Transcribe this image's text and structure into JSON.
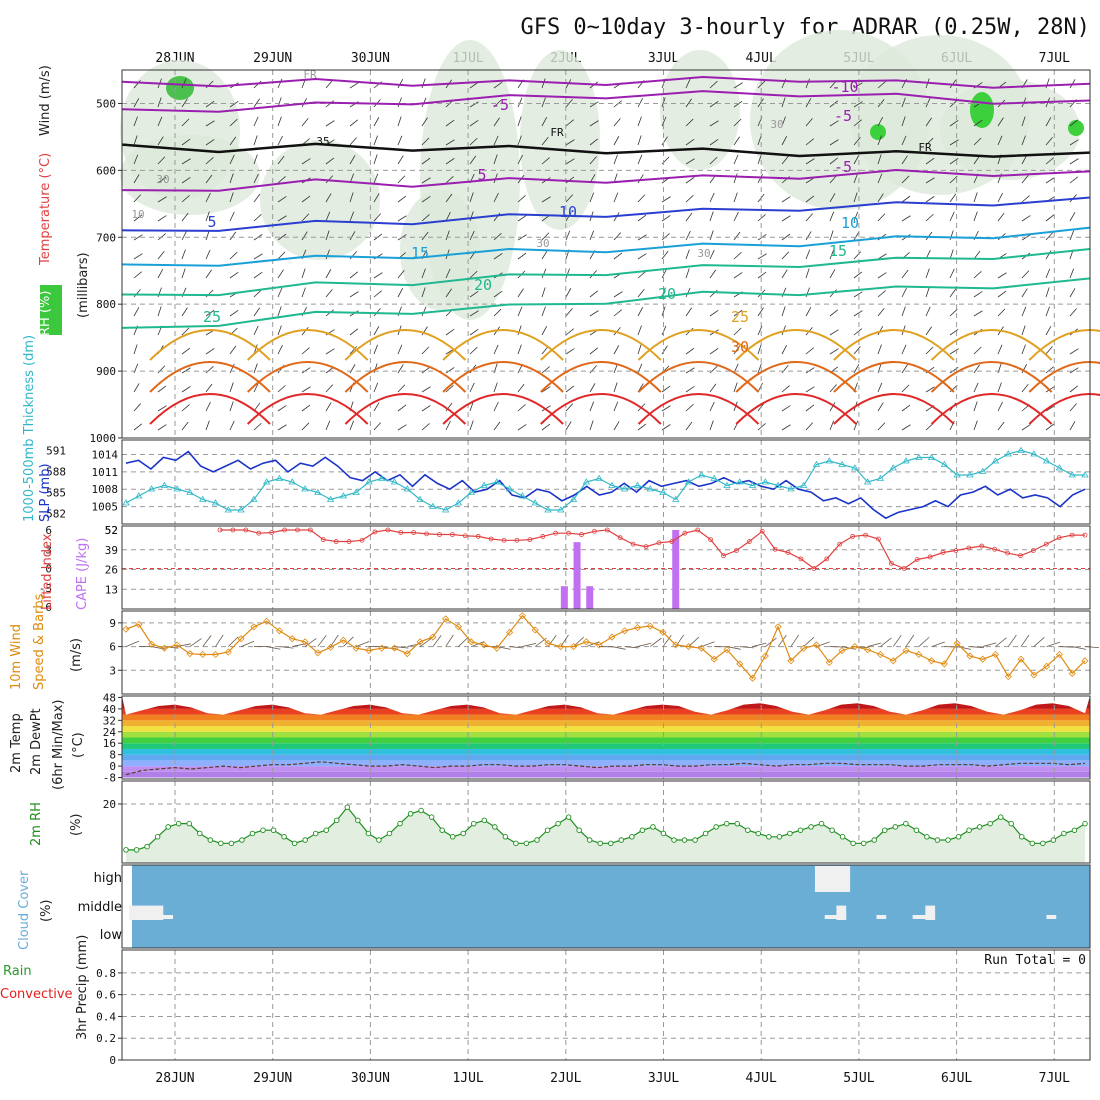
{
  "title": "GFS 0~10day 3-hourly for ADRAR (0.25W, 28N)",
  "dates": [
    "28JUN",
    "29JUN",
    "30JUN",
    "1JUL",
    "2JUL",
    "3JUL",
    "4JUL",
    "5JUL",
    "6JUL",
    "7JUL"
  ],
  "colors": {
    "grid": "#9a9a9a",
    "temp_purple": "#9a1fb0",
    "temp_blue": "#2a3fd0",
    "temp_lightblue": "#1aa0d8",
    "temp_teal": "#20b890",
    "temp_orange": "#e0a020",
    "temp_dark_orange": "#e06818",
    "temp_red": "#e02828",
    "rh_shade": "#dce8da",
    "slp": "#1a33c8",
    "thickness": "#30b8c8",
    "lifted": "#e04040",
    "cape": "#c070f0",
    "wind": "#e08a10",
    "rh2m": "#1f8f1f",
    "cloud_bg": "#6aaed6",
    "precip_green": "#2a9a2a",
    "precip_red": "#e02020"
  },
  "panel_labels": {
    "wind": "Wind (m/s)",
    "temperature": "Temperature (°C)",
    "rh": "RH (%)",
    "millibars": "(millibars)",
    "slp": "SLP (mb)",
    "thickness": "1000-500mb Thickness (dm)",
    "cape": "CAPE (J/kg)",
    "lifted_index": "Lifted Index",
    "wind10m_a": "10m Wind",
    "wind10m_b": "Speed & Barbs",
    "wind10m_units": "(m/s)",
    "temp2m_a": "2m Temp",
    "temp2m_b": "2m DewPt",
    "temp2m_c": "(6hr Min/Max)",
    "temp2m_units": "(°C)",
    "rh2m": "2m RH",
    "rh2m_units": "(%)",
    "cloud": "Cloud Cover",
    "cloud_units": "(%)",
    "precip_a": "Total / Rain",
    "precip_b": "Convective",
    "precip_c": "3hr Precip (mm)",
    "run_total": "Run Total = 0"
  },
  "chart_data": [
    {
      "type": "line",
      "panel": "upper-air cross section",
      "ylabel": "(millibars)",
      "y_ticks": [
        500,
        600,
        700,
        800,
        900,
        1000
      ],
      "ylim": [
        1000,
        450
      ],
      "contour_labels": [
        "-10",
        "-5",
        "-5",
        "-5",
        "5",
        "5",
        "10",
        "10",
        "15",
        "15",
        "20",
        "20",
        "25",
        "25",
        "30",
        "35",
        "FR",
        "FR",
        "FR",
        "10",
        "30",
        "30",
        "30",
        "30"
      ],
      "isotherms_mb": [
        {
          "name": "-10",
          "values": [
            472,
            470,
            468,
            469,
            470,
            468,
            465,
            463,
            470,
            472,
            475
          ]
        },
        {
          "name": "-5",
          "values": [
            513,
            508,
            503,
            497,
            492,
            488,
            486,
            485,
            490,
            496,
            500
          ]
        },
        {
          "name": "FR",
          "values": [
            566,
            568,
            565,
            566,
            568,
            570,
            572,
            574,
            576,
            575,
            578
          ]
        },
        {
          "name": "5",
          "values": [
            634,
            626,
            618,
            620,
            616,
            614,
            612,
            608,
            604,
            604,
            606
          ]
        },
        {
          "name": "10",
          "values": [
            694,
            686,
            680,
            676,
            670,
            665,
            662,
            656,
            652,
            648,
            645
          ]
        },
        {
          "name": "15",
          "values": [
            745,
            738,
            732,
            727,
            722,
            718,
            714,
            709,
            703,
            697,
            690
          ]
        },
        {
          "name": "20",
          "values": [
            790,
            782,
            772,
            767,
            760,
            752,
            746,
            740,
            735,
            728,
            722
          ]
        },
        {
          "name": "25",
          "values": [
            840,
            828,
            816,
            810,
            805,
            795,
            786,
            782,
            778,
            772,
            766
          ]
        }
      ]
    },
    {
      "type": "line",
      "panel": "SLP and thickness",
      "series": [
        {
          "name": "SLP (mb)",
          "values": [
            1012.5,
            1013.0,
            1011.5,
            1013.5,
            1013.0,
            1014.5,
            1012.0,
            1011.0,
            1012.0,
            1013.0,
            1011.5,
            1012.5,
            1013.0,
            1011.0,
            1012.5,
            1012.0,
            1013.5,
            1012.0,
            1010.0,
            1009.5,
            1011.0,
            1009.5,
            1010.5,
            1008.5,
            1010.5,
            1009.0,
            1008.0,
            1009.5,
            1007.5,
            1008.0,
            1009.5,
            1007.0,
            1006.5,
            1008.0,
            1007.5,
            1006.0,
            1007.0,
            1008.5,
            1007.0,
            1007.5,
            1009.0,
            1007.5,
            1009.5,
            1008.5,
            1009.0,
            1009.5,
            1008.5,
            1009.0,
            1010.0,
            1009.0,
            1009.5,
            1008.5,
            1008.0,
            1009.5,
            1008.0,
            1007.5,
            1006.0,
            1006.5,
            1005.5,
            1006.5,
            1004.5,
            1003.0,
            1004.0,
            1004.5,
            1005.0,
            1006.0,
            1005.0,
            1007.0,
            1007.5,
            1008.5,
            1007.0,
            1008.0,
            1006.5,
            1007.0,
            1006.5,
            1005.0,
            1007.0,
            1008.0
          ]
        },
        {
          "name": "1000-500mb Thickness (dm)",
          "values": [
            583.5,
            584.5,
            585.5,
            586.0,
            585.5,
            585.0,
            584.0,
            583.5,
            582.5,
            582.5,
            584.0,
            586.5,
            587.0,
            586.5,
            585.5,
            585.0,
            584.0,
            584.5,
            585.0,
            586.5,
            587.0,
            586.5,
            585.5,
            584.0,
            583.0,
            582.5,
            583.5,
            585.0,
            586.0,
            586.5,
            585.5,
            584.5,
            583.5,
            582.5,
            582.5,
            584.0,
            586.5,
            587.0,
            586.0,
            585.5,
            586.0,
            585.5,
            585.0,
            584.0,
            586.5,
            587.5,
            587.0,
            586.0,
            586.5,
            586.0,
            586.5,
            586.0,
            585.5,
            586.0,
            589.0,
            589.5,
            589.0,
            588.5,
            586.5,
            587.0,
            588.5,
            589.5,
            590.0,
            590.0,
            589.0,
            587.5,
            587.5,
            588.0,
            589.5,
            590.5,
            591.0,
            590.5,
            589.5,
            588.5,
            587.5,
            587.5
          ]
        }
      ],
      "y_ticks_left_thickness": [
        582,
        585,
        588,
        591
      ],
      "y_ticks_right_slp": [
        1005,
        1008,
        1011,
        1014
      ]
    },
    {
      "type": "bar",
      "panel": "CAPE and Lifted Index",
      "cape_bars": [
        {
          "x": 4.48,
          "value": 15
        },
        {
          "x": 4.61,
          "value": 44
        },
        {
          "x": 4.74,
          "value": 15
        },
        {
          "x": 5.62,
          "value": 52
        }
      ],
      "lifted_index": [
        6.0,
        6.0,
        6.0,
        5.5,
        5.6,
        6.0,
        6.0,
        6.0,
        4.5,
        4.2,
        4.2,
        4.4,
        5.7,
        6.0,
        5.6,
        5.6,
        5.4,
        5.3,
        5.3,
        5.1,
        5.0,
        4.6,
        4.4,
        4.4,
        4.5,
        5.0,
        5.5,
        5.5,
        5.3,
        5.8,
        6.0,
        4.8,
        3.8,
        3.4,
        4.0,
        4.2,
        5.5,
        6.0,
        4.5,
        2.0,
        2.8,
        4.2,
        5.8,
        3.0,
        2.5,
        1.5,
        0.0,
        1.5,
        3.8,
        5.0,
        5.2,
        4.6,
        0.8,
        0.0,
        1.4,
        1.8,
        2.5,
        2.8,
        3.2,
        3.5,
        3.0,
        2.4,
        2.0,
        2.8,
        3.8,
        4.8,
        5.2,
        5.2
      ],
      "lifted_index_ticks": [
        6,
        3,
        0,
        -3,
        -6
      ],
      "cape_ticks": [
        13,
        26,
        39,
        52
      ]
    },
    {
      "type": "line",
      "panel": "10m wind",
      "series": [
        {
          "name": "Speed",
          "values": [
            8.2,
            8.8,
            6.3,
            5.8,
            6.2,
            5.1,
            5.0,
            5.0,
            5.3,
            7.0,
            8.5,
            9.2,
            8.0,
            7.0,
            6.6,
            5.2,
            5.9,
            6.8,
            5.8,
            5.5,
            5.8,
            5.8,
            5.1,
            6.6,
            7.2,
            9.5,
            8.5,
            6.6,
            6.2,
            5.8,
            7.8,
            9.9,
            8.1,
            6.4,
            6.0,
            6.0,
            6.6,
            6.2,
            7.2,
            8.0,
            8.4,
            8.6,
            7.8,
            6.2,
            6.0,
            5.8,
            4.4,
            5.6,
            3.8,
            2.0,
            4.8,
            8.5,
            4.2,
            5.8,
            6.2,
            4.0,
            5.5,
            6.0,
            5.6,
            5.0,
            4.2,
            5.5,
            5.0,
            4.2,
            3.8,
            6.4,
            4.8,
            4.4,
            5.0,
            2.2,
            4.4,
            2.4,
            3.5,
            5.0,
            2.6,
            4.2
          ]
        }
      ],
      "y_ticks": [
        3,
        6,
        9
      ]
    },
    {
      "type": "area",
      "panel": "2m temperature",
      "y_ticks": [
        -8,
        0,
        8,
        16,
        24,
        32,
        40,
        48
      ],
      "band_boundaries": [
        -8,
        -4,
        0,
        4,
        8,
        12,
        16,
        20,
        24,
        28,
        32,
        36,
        40,
        44
      ],
      "series": [
        {
          "name": "2m Temp max",
          "values": [
            36,
            39,
            42,
            43,
            41,
            37,
            36,
            39,
            42,
            43,
            41,
            37,
            36,
            39,
            42,
            43,
            41,
            37,
            36,
            39,
            42,
            43,
            41,
            37,
            36,
            39,
            42,
            43,
            41,
            37,
            36,
            39,
            42,
            43,
            42,
            38,
            36,
            39,
            43,
            44,
            42,
            38,
            36,
            39,
            43,
            44,
            42,
            38,
            36,
            39,
            43,
            44,
            42,
            38,
            36,
            39,
            43,
            44,
            42,
            37
          ]
        },
        {
          "name": "2m DewPt",
          "values": [
            -6,
            -3,
            -2,
            -1,
            -2,
            -1,
            0,
            -1,
            0,
            1,
            1,
            2,
            3,
            2,
            1,
            0,
            0,
            1,
            0,
            -1,
            0,
            0,
            1,
            1,
            0,
            0,
            1,
            1,
            0,
            -1,
            0,
            0,
            1,
            1,
            0,
            0,
            1,
            1,
            2,
            1,
            0,
            1,
            1,
            2,
            2,
            1,
            1,
            1,
            0,
            0,
            1,
            1,
            1,
            0,
            1,
            2,
            2,
            2,
            1,
            2
          ]
        }
      ]
    },
    {
      "type": "area",
      "panel": "2m RH",
      "y_ticks": [
        20
      ],
      "series": [
        {
          "name": "2m RH (%)",
          "values": [
            6,
            6,
            7,
            10,
            13,
            14,
            14,
            11,
            9,
            8,
            8,
            9,
            11,
            12,
            12,
            10,
            8,
            9,
            11,
            12,
            15,
            19,
            15,
            11,
            9,
            11,
            14,
            17,
            18,
            16,
            12,
            10,
            11,
            14,
            15,
            13,
            10,
            8,
            8,
            9,
            12,
            14,
            16,
            12,
            9,
            8,
            8,
            9,
            10,
            12,
            13,
            11,
            9,
            9,
            9,
            11,
            13,
            14,
            14,
            12,
            11,
            10,
            10,
            11,
            12,
            13,
            14,
            12,
            10,
            8,
            8,
            9,
            12,
            13,
            14,
            12,
            10,
            9,
            9,
            10,
            12,
            13,
            14,
            16,
            14,
            10,
            8,
            8,
            9,
            11,
            12,
            14
          ]
        }
      ]
    },
    {
      "type": "bar",
      "panel": "Cloud Cover",
      "levels": [
        "high",
        "middle",
        "low"
      ],
      "high": [
        {
          "x_start": 7.05,
          "x_end": 7.41,
          "value": 100
        }
      ],
      "middle": [
        {
          "x_start": 0.03,
          "x_end": 0.38,
          "value": 60
        },
        {
          "x_start": 7.27,
          "x_end": 7.37,
          "value": 60
        },
        {
          "x_start": 8.18,
          "x_end": 8.28,
          "value": 60
        }
      ],
      "low": [
        {
          "x_start": 0.03,
          "x_end": 0.48,
          "value": 10
        },
        {
          "x_start": 7.15,
          "x_end": 7.37,
          "value": 10
        },
        {
          "x_start": 7.68,
          "x_end": 7.78,
          "value": 10
        },
        {
          "x_start": 8.05,
          "x_end": 8.28,
          "value": 10
        },
        {
          "x_start": 9.42,
          "x_end": 9.52,
          "value": 10
        }
      ]
    },
    {
      "type": "bar",
      "panel": "3hr precip",
      "ylabel": "3hr Precip (mm)",
      "y_ticks": [
        0,
        0.2,
        0.4,
        0.6,
        0.8
      ],
      "ylim": [
        0,
        0.9
      ],
      "run_total": 0,
      "values": []
    }
  ]
}
